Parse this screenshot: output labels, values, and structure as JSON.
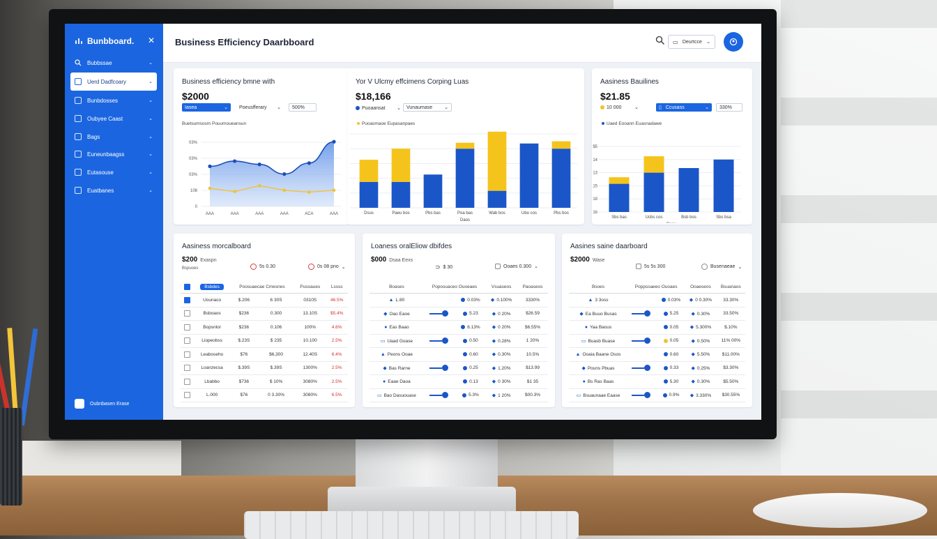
{
  "sidebar": {
    "brand": "Bunbboard.",
    "items": [
      {
        "label": "Bubbssae",
        "icon": "search-icon"
      },
      {
        "label": "Uerd Dadfcoary",
        "icon": "grid-icon",
        "active": true
      },
      {
        "label": "Bunbdosses",
        "icon": "dashboard-icon"
      },
      {
        "label": "Oubyee Caast",
        "icon": "chart-icon"
      },
      {
        "label": "Bags",
        "icon": "list-icon"
      },
      {
        "label": "Euneunbaagss",
        "icon": "folder-icon"
      },
      {
        "label": "Eutasouse",
        "icon": "settings-icon"
      },
      {
        "label": "Euatbanes",
        "icon": "report-icon"
      }
    ],
    "footer": "Oubnbasen Erase"
  },
  "header": {
    "title": "Business Efficiency Daarbboard",
    "dropdown": "Deurtcce"
  },
  "cards": {
    "c1": {
      "title": "Business efficiency bmne with",
      "value": "$2000",
      "ctrl1": "Iasea",
      "ctrl2": "Poeusfferary",
      "ctrl3": "500%",
      "subtitle": "Buetsumsosm Pouumoueansun"
    },
    "c2": {
      "title": "Yor V Ulcmy effcimens Corping Luas",
      "value": "$18,166",
      "ctrl1": "Puoaansat",
      "ctrl2": "Vunaumase",
      "subtitle": "Puoasmaoe Eupasanpaes"
    },
    "c3": {
      "title": "Aasiness Bauilines",
      "value": "$21.85",
      "ctrl1": "10 000",
      "ctrl2": "Ccusass",
      "ctrl3": "330%",
      "subtitle": "Uaed Eooann Euasnadawe"
    }
  },
  "chart1": {
    "type": "line",
    "yticks": [
      "03%",
      "03%",
      "03%",
      "108",
      "0"
    ],
    "xticks": [
      "AAA",
      "AAA",
      "AAA",
      "AAA",
      "ACA",
      "AAA"
    ],
    "series": [
      {
        "values": [
          62,
          70,
          65,
          50,
          67,
          100
        ]
      },
      {
        "values": [
          28,
          23,
          32,
          25,
          22,
          25
        ]
      }
    ],
    "ylim": [
      0,
      110
    ]
  },
  "chart2": {
    "type": "bar",
    "categories": [
      "Dsus",
      "Paeu bos",
      "Pbs bas",
      "Poa bas",
      "Wab bos",
      "Ubo cos",
      "Pbs bos"
    ],
    "xlabel": "Daos",
    "series": [
      {
        "values": [
          35,
          35,
          45,
          80,
          23,
          87,
          80
        ]
      },
      {
        "values": [
          30,
          45,
          0,
          8,
          80,
          0,
          10
        ]
      }
    ],
    "ylim": [
      0,
      100
    ]
  },
  "chart3": {
    "type": "bar",
    "yticks": [
      "$5",
      "14",
      "13",
      "15",
      "18",
      "1b"
    ],
    "categories": [
      "Sbs bas",
      "Ucbs cos",
      "Bsb bos",
      "Sbs bsa"
    ],
    "xlabel": "Daey",
    "series": [
      {
        "values": [
          43,
          60,
          67,
          80
        ]
      },
      {
        "values": [
          10,
          25,
          0,
          0
        ]
      }
    ],
    "ylim": [
      0,
      100
    ]
  },
  "tables": {
    "t1": {
      "title": "Aasiness morcalboard",
      "value": "$200",
      "tag": "Exaspn",
      "sub": "Bspuoes",
      "ctrl1": "5s 0.30",
      "ctrl2": "0s 08 pno",
      "head": [
        "Bsbdes",
        "Poosuaecae Cmesnes",
        "Pusoaues",
        "Lssss"
      ],
      "rows": [
        [
          "Uounaco",
          "$.206",
          "6 30S",
          "0310S",
          "46.5%"
        ],
        [
          "Bsboaos",
          "$236",
          "0.300",
          "13.10S",
          "$5.4%"
        ],
        [
          "Bopsnlor",
          "$236",
          "0.106",
          "100%",
          "4.6%"
        ],
        [
          "Liopeobss",
          "$.23S",
          "$ 235",
          "10.100",
          "2.5%"
        ],
        [
          "Leaboseho",
          "$76",
          "$6,300",
          "12.40S",
          "6.4%"
        ],
        [
          "Loanzecsa",
          "$.39S",
          "$.39S",
          "1300%",
          "2.5%"
        ],
        [
          "Lbabbo",
          "$736",
          "$ 10%",
          "3080%",
          "2.5%"
        ],
        [
          "L.000",
          "$76",
          "0 3.30%",
          "3080%",
          "6.5%"
        ]
      ]
    },
    "t2": {
      "title": "Loaness oralEliow dbifdes",
      "value": "$000",
      "tag": "Dsaa Eexs",
      "ctrl1": "$ 30",
      "ctrl2": "Ooaes 0.300",
      "head": [
        "Boases",
        "Poposuaceo Ouoeaes",
        "Vsuaseos",
        "Paoaseos"
      ],
      "rows": [
        [
          "L.80",
          "0.03%",
          "0.100%",
          "3330%"
        ],
        [
          "Oao Eaoe",
          "5.23",
          "0 20%",
          "$26.59"
        ],
        [
          "Eas Baao",
          "6.13%",
          "0 20%",
          "$6.55%"
        ],
        [
          "Uaad Goase",
          "0.50",
          "0.28%",
          "1 20%"
        ],
        [
          "Peons Ooae",
          "0.60",
          "0.30%",
          "10.5%"
        ],
        [
          "Bas Rarne",
          "0.25",
          "1.20%",
          "$13.99"
        ],
        [
          "Eaae Daoa",
          "0.13",
          "0 30%",
          "$1 35"
        ],
        [
          "Bao Dasuouase",
          "5.3%",
          "1 20%",
          "$00.3%"
        ]
      ]
    },
    "t3": {
      "title": "Aasines saine daarboard",
      "value": "$2000",
      "tag": "Wase",
      "ctrl1": "5s 5s 300",
      "ctrl2": "Busenaeae",
      "head": [
        "Bsoes",
        "Poppssaeeo Ouoaes",
        "Ooaeseos",
        "Bsuanaos"
      ],
      "rows": [
        [
          "3 3oss",
          "0.03%",
          "0 0.30%",
          "33.30%"
        ],
        [
          "Ea Buuo Busas",
          "5.25",
          "0.30%",
          "33.50%"
        ],
        [
          "Yaa Baous",
          "0.05",
          "5.300%",
          "$.10%"
        ],
        [
          "Buasb Buase",
          "0.05",
          "0.50%",
          "11% 00%"
        ],
        [
          "Ooaia Baane Osos",
          "0.60",
          "5.50%",
          "$11.00%"
        ],
        [
          "Pouns Pbuas",
          "0.33",
          "0.25%",
          "$3.30%"
        ],
        [
          "Bs Ras Baas",
          "5.30",
          "0.30%",
          "$5.50%"
        ],
        [
          "Bsuaunaae Eaase",
          "0.9%",
          "3.330%",
          "$30.55%"
        ]
      ]
    }
  },
  "colors": {
    "accent": "#1b66e0",
    "bar_blue": "#1b56c8",
    "bar_yellow": "#f5c41c",
    "negative": "#d32f2f"
  }
}
